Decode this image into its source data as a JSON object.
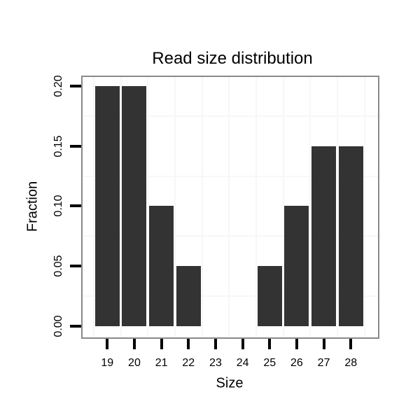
{
  "chart_data": {
    "type": "bar",
    "title": "Read size distribution",
    "xlabel": "Size",
    "ylabel": "Fraction",
    "categories": [
      "19",
      "20",
      "21",
      "22",
      "23",
      "24",
      "25",
      "26",
      "27",
      "28"
    ],
    "values": [
      0.2,
      0.2,
      0.1,
      0.05,
      0,
      0,
      0.05,
      0.1,
      0.15,
      0.15
    ],
    "y_ticks": [
      0.0,
      0.05,
      0.1,
      0.15,
      0.2
    ],
    "y_tick_labels": [
      "0.00",
      "0.05",
      "0.10",
      "0.15",
      "0.20"
    ],
    "ylim": [
      0,
      0.208
    ],
    "legend": "none",
    "grid": "minor gridlines only, between ticks",
    "colors": {
      "bar": "#333333",
      "panel_border": "#8a8a8a",
      "grid": "#f7f7f7",
      "tick": "#000000",
      "text": "#000000",
      "background": "#ffffff"
    }
  }
}
